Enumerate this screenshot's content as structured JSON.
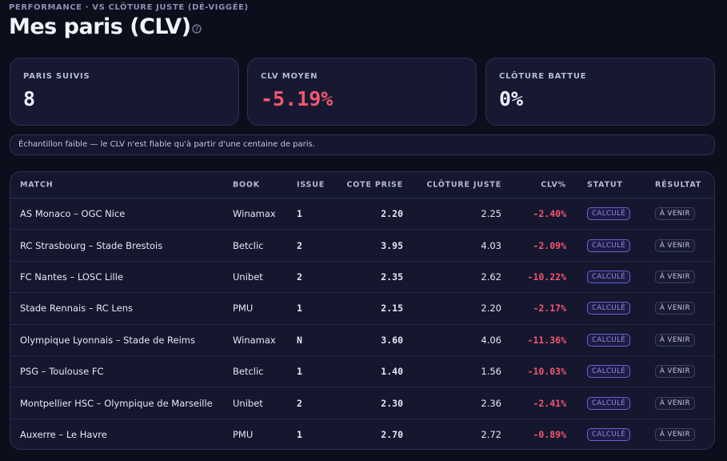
{
  "header": {
    "eyebrow": "PERFORMANCE · VS CLÔTURE JUSTE (DÉ-VIGGÉE)",
    "title": "Mes paris (CLV)"
  },
  "cards": [
    {
      "label": "PARIS SUIVIS",
      "value": "8"
    },
    {
      "label": "CLV MOYEN",
      "value": "-5.19%"
    },
    {
      "label": "CLÔTURE BATTUE",
      "value": "0%"
    }
  ],
  "notice": "Échantillon faible — le CLV n'est fiable qu'à partir d'une centaine de paris.",
  "table": {
    "columns": [
      "MATCH",
      "BOOK",
      "ISSUE",
      "COTE PRISE",
      "CLÔTURE JUSTE",
      "CLV%",
      "STATUT",
      "RÉSULTAT"
    ],
    "rows": [
      [
        "AS Monaco – OGC Nice",
        "Winamax",
        "1",
        "2.20",
        "2.25",
        "-2.40%",
        "CALCULÉ",
        "À VENIR"
      ],
      [
        "RC Strasbourg – Stade Brestois",
        "Betclic",
        "2",
        "3.95",
        "4.03",
        "-2.09%",
        "CALCULÉ",
        "À VENIR"
      ],
      [
        "FC Nantes – LOSC Lille",
        "Unibet",
        "2",
        "2.35",
        "2.62",
        "-10.22%",
        "CALCULÉ",
        "À VENIR"
      ],
      [
        "Stade Rennais – RC Lens",
        "PMU",
        "1",
        "2.15",
        "2.20",
        "-2.17%",
        "CALCULÉ",
        "À VENIR"
      ],
      [
        "Olympique Lyonnais – Stade de Reims",
        "Winamax",
        "N",
        "3.60",
        "4.06",
        "-11.36%",
        "CALCULÉ",
        "À VENIR"
      ],
      [
        "PSG – Toulouse FC",
        "Betclic",
        "1",
        "1.40",
        "1.56",
        "-10.03%",
        "CALCULÉ",
        "À VENIR"
      ],
      [
        "Montpellier HSC – Olympique de Marseille",
        "Unibet",
        "2",
        "2.30",
        "2.36",
        "-2.41%",
        "CALCULÉ",
        "À VENIR"
      ],
      [
        "Auxerre – Le Havre",
        "PMU",
        "1",
        "2.70",
        "2.72",
        "-0.89%",
        "CALCULÉ",
        "À VENIR"
      ]
    ]
  }
}
